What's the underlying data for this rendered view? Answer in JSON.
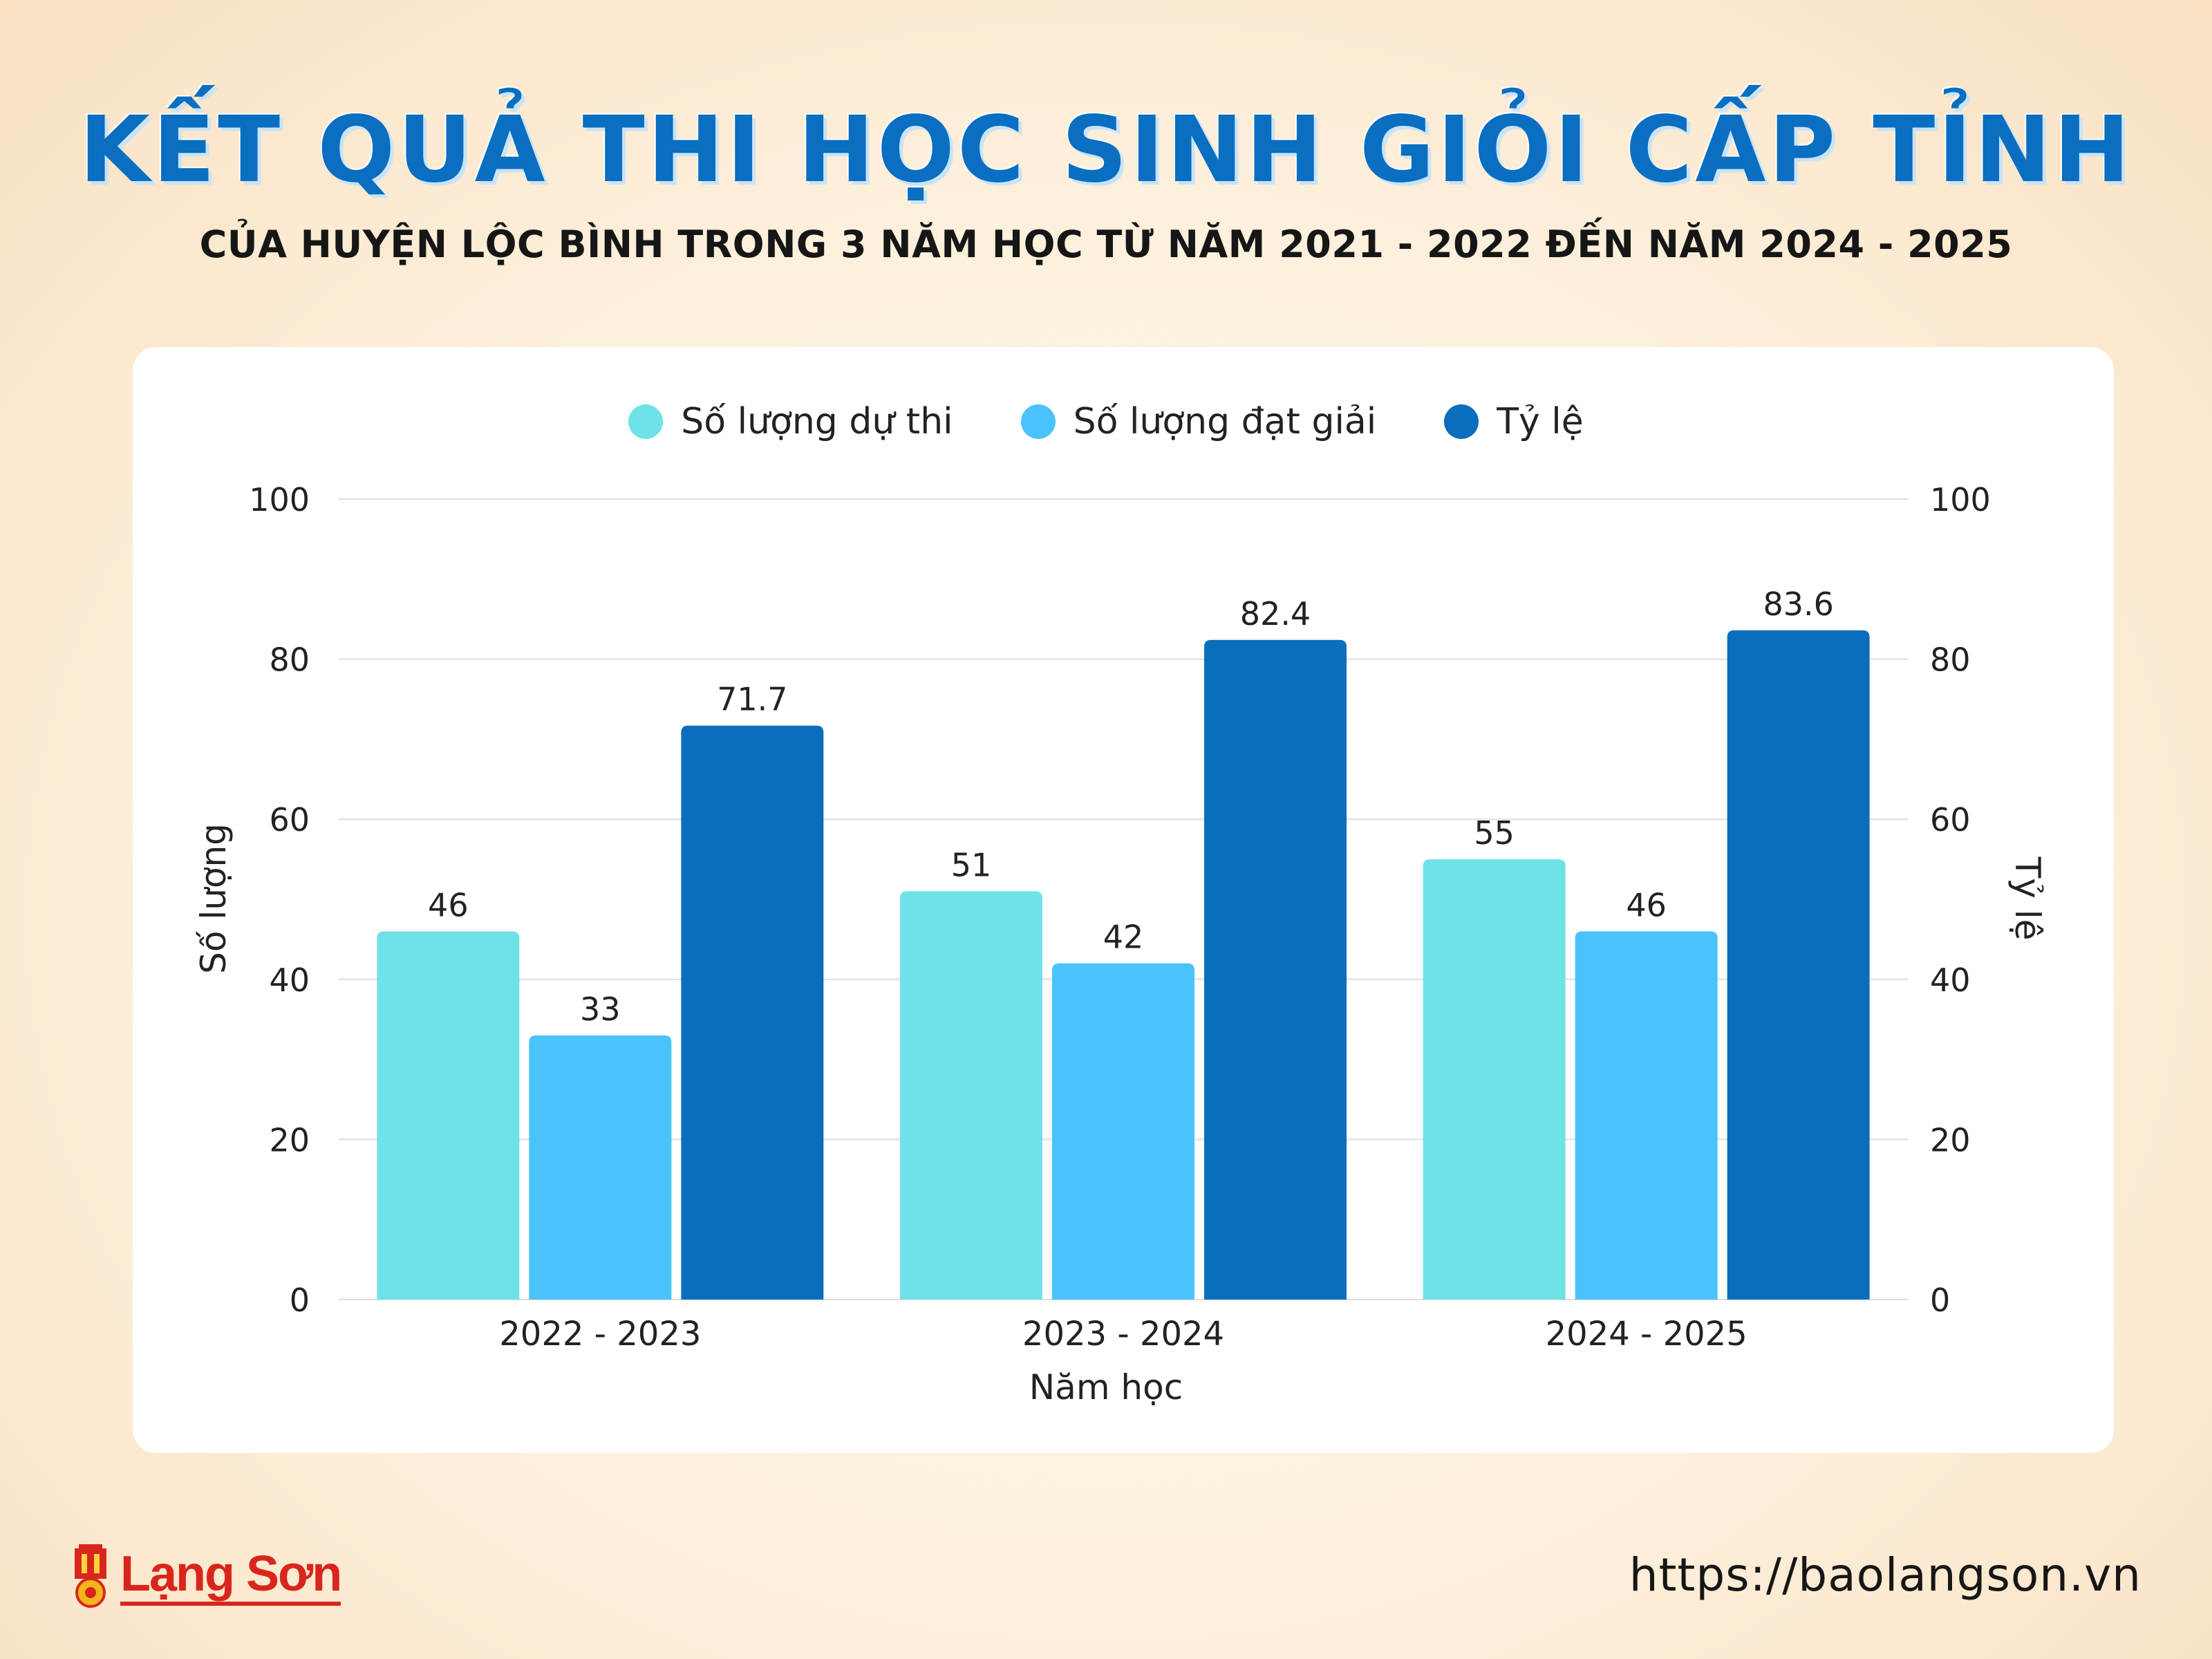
{
  "header": {
    "title": "KẾT QUẢ THI HỌC SINH GIỎI CẤP TỈNH",
    "subtitle": "CỦA HUYỆN LỘC BÌNH TRONG 3 NĂM HỌC TỪ NĂM 2021 - 2022 ĐẾN NĂM 2024 - 2025"
  },
  "chart_data": {
    "type": "bar",
    "categories": [
      "2022 - 2023",
      "2023 - 2024",
      "2024 - 2025"
    ],
    "series": [
      {
        "name": "Số lượng dự thi",
        "values": [
          46,
          51,
          55
        ],
        "color": "#6ee2e8",
        "axis": "left"
      },
      {
        "name": "Số lượng đạt giải",
        "values": [
          33,
          42,
          46
        ],
        "color": "#4ac3fc",
        "axis": "left"
      },
      {
        "name": "Tỷ lệ",
        "values": [
          71.7,
          82.4,
          83.6
        ],
        "color": "#0a6ebd",
        "axis": "right"
      }
    ],
    "xlabel": "Năm học",
    "ylabel": "Số lượng",
    "y2label": "Tỷ lệ",
    "ylim": [
      0,
      100
    ],
    "y2lim": [
      0,
      100
    ],
    "yticks": [
      0,
      20,
      40,
      60,
      80,
      100
    ],
    "grid": true,
    "legend_position": "top-center"
  },
  "footer": {
    "logo_text": "Lạng Sơn",
    "url": "https://baolangson.vn"
  }
}
